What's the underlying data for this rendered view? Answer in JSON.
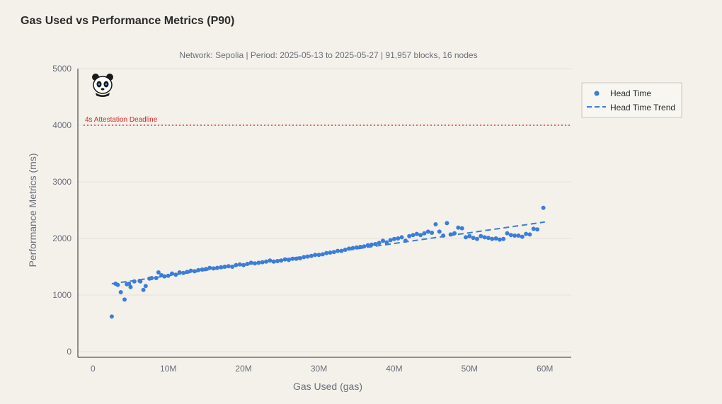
{
  "colors": {
    "background": "#f3f1ea",
    "points": "#3b7dd8",
    "trend": "#3b7dd8",
    "threshold": "#e53935",
    "grid": "#e3e1da"
  },
  "chart_data": {
    "type": "scatter",
    "title": "Gas Used vs Performance Metrics (P90)",
    "subtitle": "Network: Sepolia | Period: 2025-05-13 to 2025-05-27 | 91,957 blocks, 16 nodes",
    "xlabel": "Gas Used (gas)",
    "ylabel": "Performance Metrics (ms)",
    "xlim": [
      -2000000,
      63500000
    ],
    "ylim": [
      -100,
      5000
    ],
    "x_ticks": [
      0,
      10000000,
      20000000,
      30000000,
      40000000,
      50000000,
      60000000
    ],
    "x_tick_labels": [
      "0",
      "10M",
      "20M",
      "30M",
      "40M",
      "50M",
      "60M"
    ],
    "y_ticks": [
      0,
      1000,
      2000,
      3000,
      4000,
      5000
    ],
    "y_tick_labels": [
      "0",
      "1000",
      "2000",
      "3000",
      "4000",
      "5000"
    ],
    "threshold": {
      "value": 4000,
      "label": "4s Attestation Deadline"
    },
    "legend": [
      {
        "label": "Head Time",
        "kind": "point"
      },
      {
        "label": "Head Time Trend",
        "kind": "dashed-line"
      }
    ],
    "legend_position": "right",
    "series": [
      {
        "name": "Head Time",
        "points": [
          [
            2500000,
            620
          ],
          [
            3000000,
            1200
          ],
          [
            3300000,
            1180
          ],
          [
            3700000,
            1050
          ],
          [
            4200000,
            920
          ],
          [
            4500000,
            1190
          ],
          [
            4800000,
            1200
          ],
          [
            5000000,
            1140
          ],
          [
            5500000,
            1240
          ],
          [
            6200000,
            1250
          ],
          [
            6300000,
            1240
          ],
          [
            6700000,
            1090
          ],
          [
            7000000,
            1160
          ],
          [
            7500000,
            1290
          ],
          [
            7800000,
            1300
          ],
          [
            8400000,
            1300
          ],
          [
            8700000,
            1400
          ],
          [
            9100000,
            1350
          ],
          [
            9500000,
            1330
          ],
          [
            10000000,
            1340
          ],
          [
            10500000,
            1380
          ],
          [
            11000000,
            1360
          ],
          [
            11500000,
            1400
          ],
          [
            12000000,
            1390
          ],
          [
            12500000,
            1410
          ],
          [
            13000000,
            1430
          ],
          [
            13500000,
            1420
          ],
          [
            14000000,
            1440
          ],
          [
            14500000,
            1450
          ],
          [
            15000000,
            1460
          ],
          [
            15500000,
            1480
          ],
          [
            16000000,
            1470
          ],
          [
            16500000,
            1480
          ],
          [
            17000000,
            1490
          ],
          [
            17500000,
            1500
          ],
          [
            18000000,
            1510
          ],
          [
            18500000,
            1500
          ],
          [
            19000000,
            1530
          ],
          [
            19500000,
            1540
          ],
          [
            20000000,
            1530
          ],
          [
            20500000,
            1550
          ],
          [
            21000000,
            1570
          ],
          [
            21500000,
            1560
          ],
          [
            22000000,
            1570
          ],
          [
            22500000,
            1580
          ],
          [
            23000000,
            1590
          ],
          [
            23500000,
            1610
          ],
          [
            24000000,
            1590
          ],
          [
            24500000,
            1600
          ],
          [
            25000000,
            1610
          ],
          [
            25500000,
            1630
          ],
          [
            26000000,
            1620
          ],
          [
            26500000,
            1640
          ],
          [
            27000000,
            1640
          ],
          [
            27500000,
            1650
          ],
          [
            28000000,
            1670
          ],
          [
            28500000,
            1680
          ],
          [
            29000000,
            1690
          ],
          [
            29500000,
            1710
          ],
          [
            30000000,
            1710
          ],
          [
            30500000,
            1720
          ],
          [
            31000000,
            1740
          ],
          [
            31500000,
            1750
          ],
          [
            32000000,
            1760
          ],
          [
            32500000,
            1780
          ],
          [
            33000000,
            1780
          ],
          [
            33500000,
            1800
          ],
          [
            34000000,
            1820
          ],
          [
            34500000,
            1830
          ],
          [
            35000000,
            1840
          ],
          [
            35500000,
            1850
          ],
          [
            36000000,
            1860
          ],
          [
            36500000,
            1880
          ],
          [
            37000000,
            1890
          ],
          [
            37500000,
            1900
          ],
          [
            38000000,
            1920
          ],
          [
            38500000,
            1960
          ],
          [
            39000000,
            1930
          ],
          [
            39500000,
            1970
          ],
          [
            40000000,
            1990
          ],
          [
            40500000,
            2000
          ],
          [
            41000000,
            2020
          ],
          [
            41500000,
            1960
          ],
          [
            42000000,
            2040
          ],
          [
            42500000,
            2060
          ],
          [
            43000000,
            2080
          ],
          [
            43500000,
            2060
          ],
          [
            44000000,
            2090
          ],
          [
            44500000,
            2120
          ],
          [
            45000000,
            2100
          ],
          [
            45500000,
            2250
          ],
          [
            46000000,
            2120
          ],
          [
            46500000,
            2050
          ],
          [
            47000000,
            2270
          ],
          [
            47500000,
            2070
          ],
          [
            48000000,
            2090
          ],
          [
            48500000,
            2190
          ],
          [
            49000000,
            2180
          ],
          [
            49500000,
            2020
          ],
          [
            50000000,
            2040
          ],
          [
            50500000,
            2010
          ],
          [
            51000000,
            1990
          ],
          [
            51500000,
            2040
          ],
          [
            52000000,
            2020
          ],
          [
            52500000,
            2010
          ],
          [
            53000000,
            1990
          ],
          [
            53500000,
            2000
          ],
          [
            54000000,
            1980
          ],
          [
            54500000,
            1990
          ],
          [
            55000000,
            2090
          ],
          [
            55500000,
            2060
          ],
          [
            56000000,
            2050
          ],
          [
            56500000,
            2050
          ],
          [
            57000000,
            2030
          ],
          [
            57500000,
            2080
          ],
          [
            58000000,
            2070
          ],
          [
            58500000,
            2170
          ],
          [
            59000000,
            2160
          ],
          [
            59800000,
            2540
          ]
        ]
      },
      {
        "name": "Head Time Trend",
        "kind": "line",
        "points": [
          [
            2500000,
            1200
          ],
          [
            60000000,
            2290
          ]
        ]
      }
    ]
  }
}
